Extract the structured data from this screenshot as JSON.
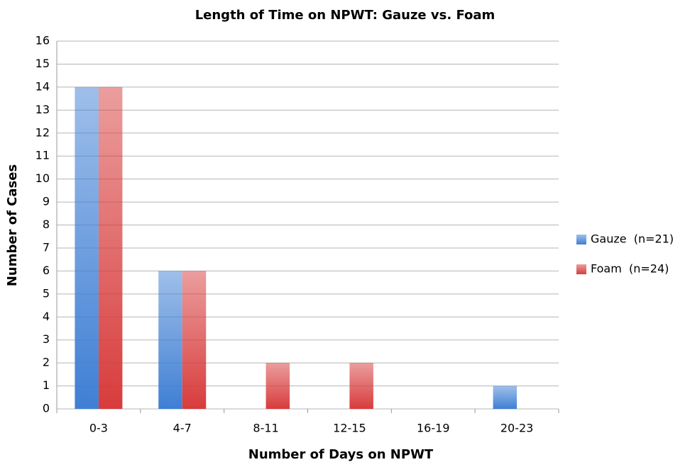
{
  "chart_data": {
    "type": "bar",
    "title": "Length of Time on NPWT: Gauze vs. Foam",
    "x_label": "Number of Days on NPWT",
    "y_label": "Number of Cases",
    "categories": [
      "0-3",
      "4-7",
      "8-11",
      "12-15",
      "16-19",
      "20-23"
    ],
    "series": [
      {
        "name": "Gauze  (n=21)",
        "color": "#3f7fd4",
        "values": [
          14,
          6,
          0,
          0,
          0,
          1
        ]
      },
      {
        "name": "Foam  (n=24)",
        "color": "#d83c3c",
        "values": [
          14,
          6,
          2,
          2,
          0,
          0
        ]
      }
    ],
    "ylim": [
      0,
      16
    ],
    "yticks": [
      0,
      1,
      2,
      3,
      4,
      5,
      6,
      7,
      8,
      9,
      10,
      11,
      12,
      13,
      14,
      15,
      16
    ],
    "grid": true,
    "legend": "right"
  }
}
